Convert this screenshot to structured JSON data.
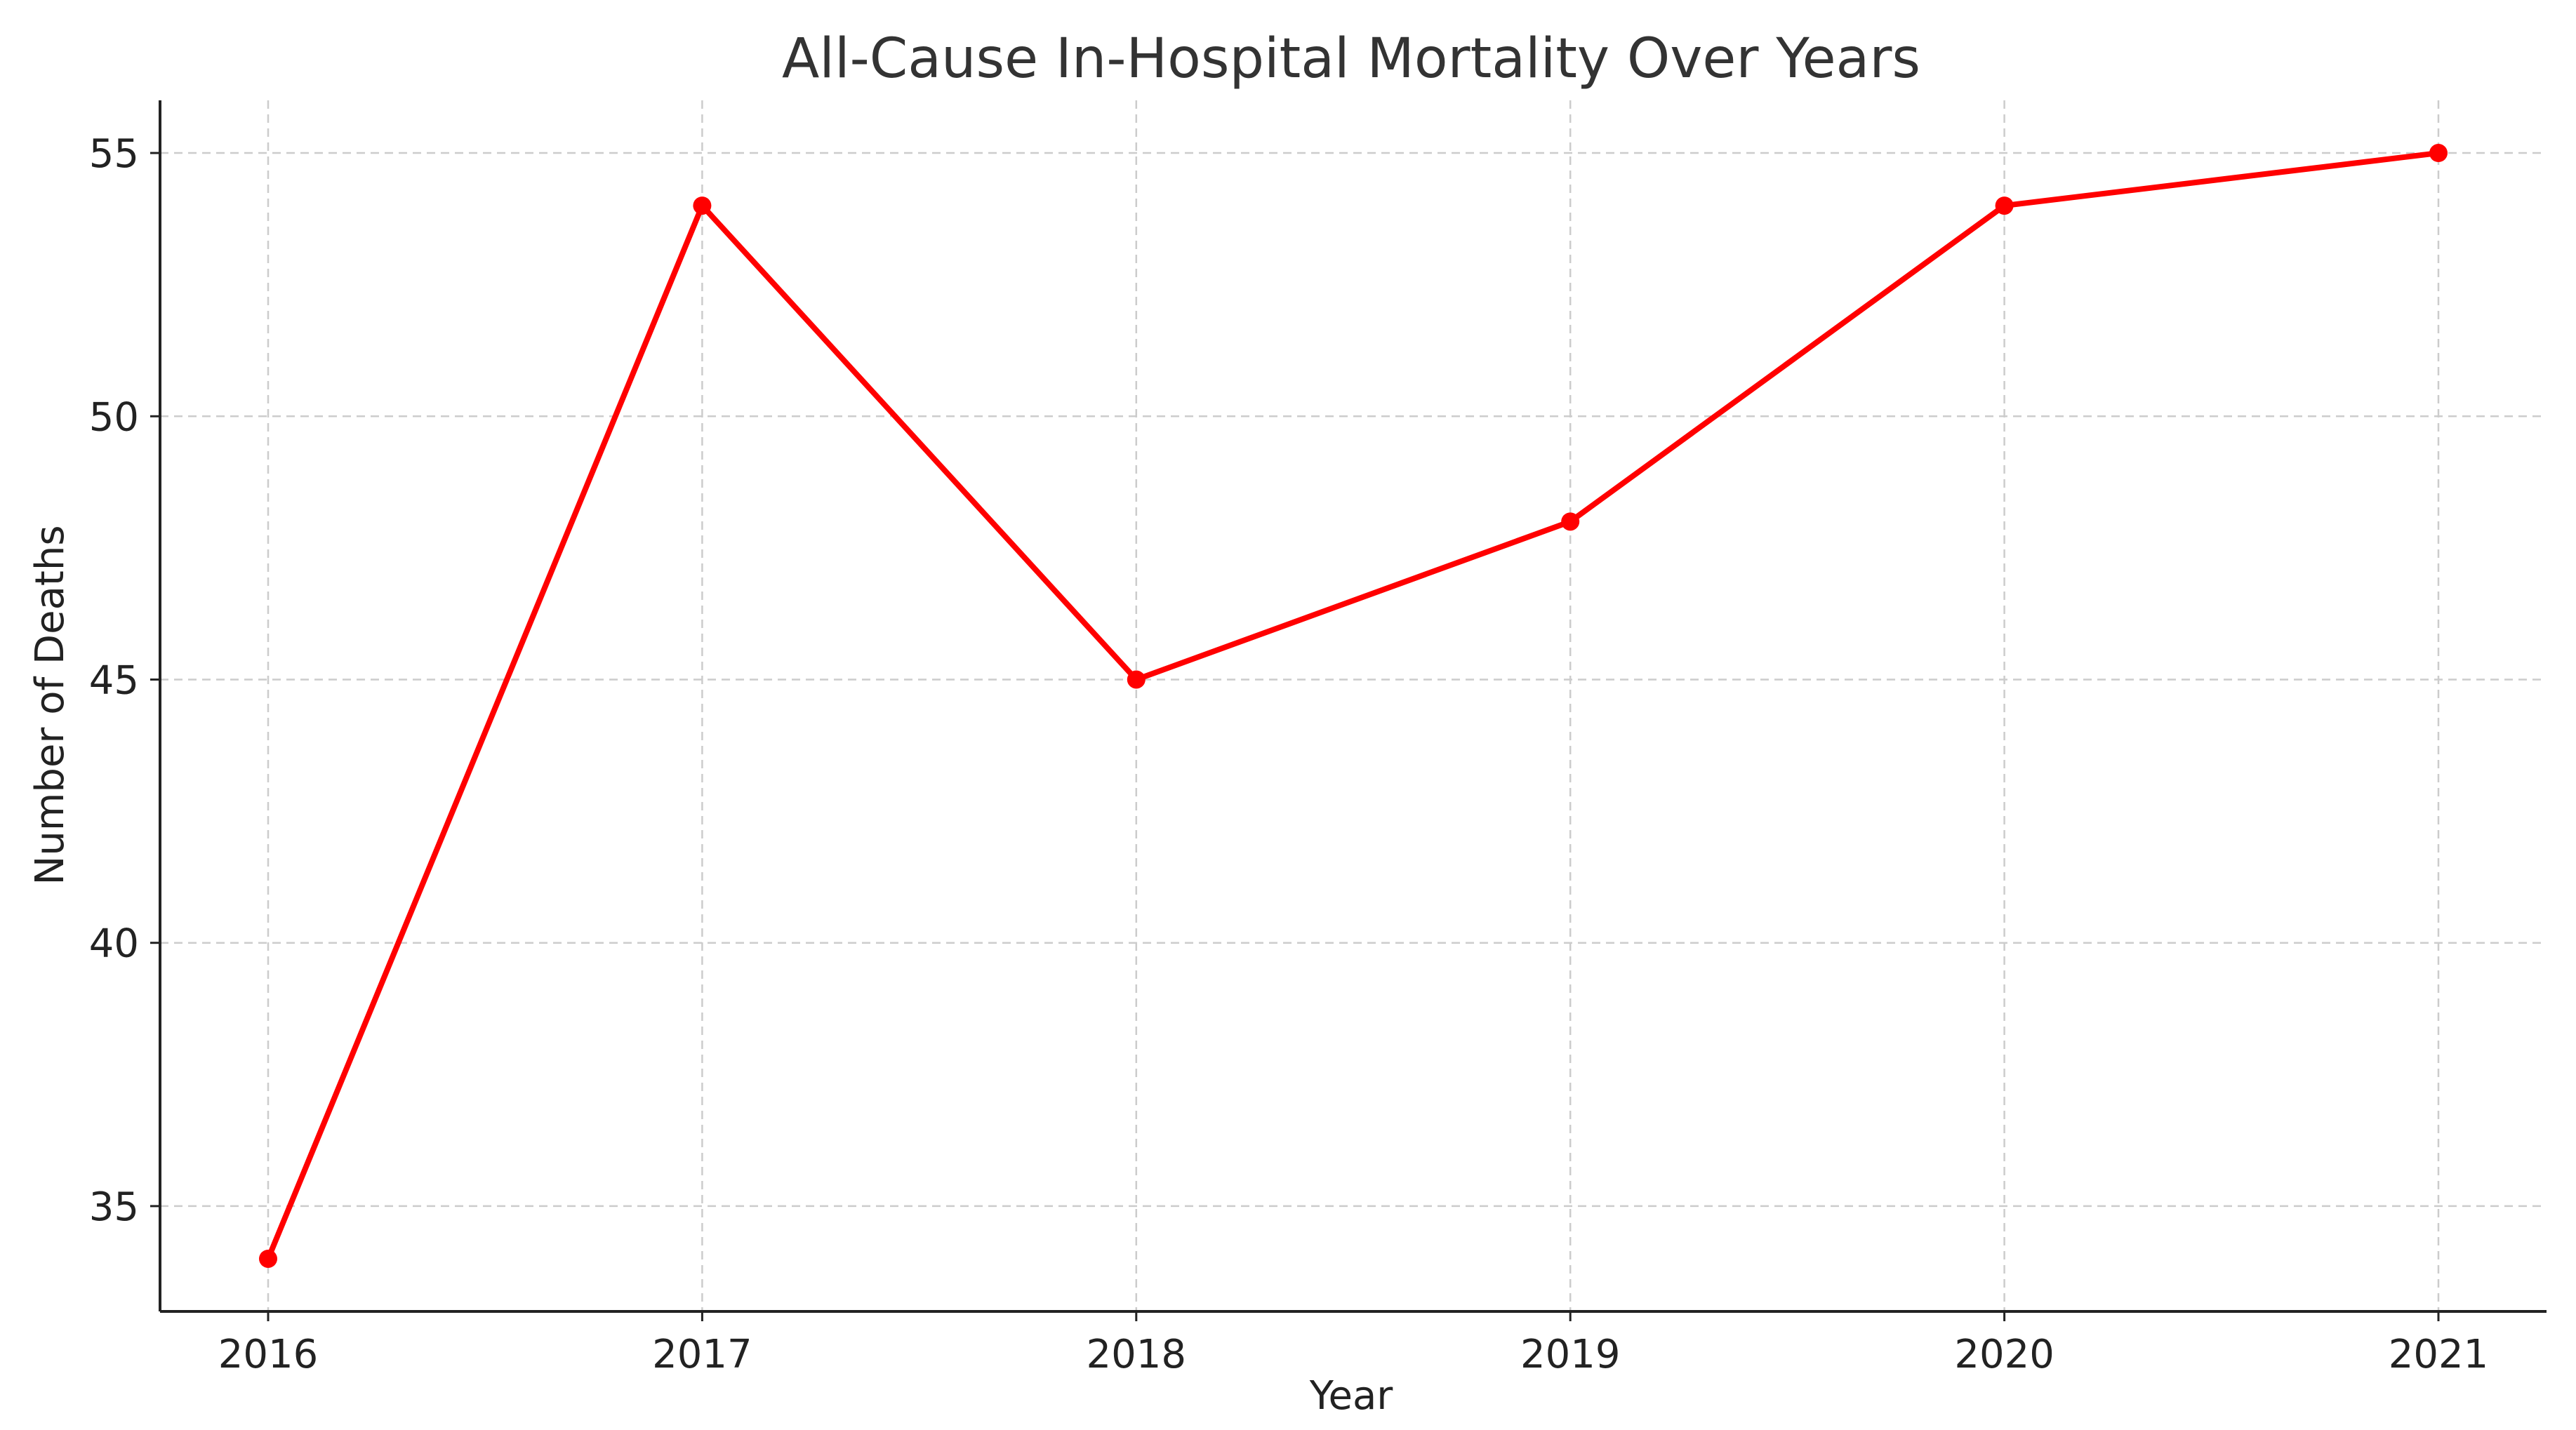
{
  "chart_data": {
    "type": "line",
    "title": "All-Cause In-Hospital Mortality Over Years",
    "xlabel": "Year",
    "ylabel": "Number of Deaths",
    "x": [
      "2016",
      "2017",
      "2018",
      "2019",
      "2020",
      "2021"
    ],
    "series": [
      {
        "values": [
          34,
          54,
          45,
          48,
          54,
          55
        ],
        "color": "#ff0000",
        "marker": "circle"
      }
    ],
    "ylim": [
      33,
      56
    ],
    "yticks": [
      35,
      40,
      45,
      50,
      55
    ],
    "grid": true,
    "legend": "none"
  }
}
